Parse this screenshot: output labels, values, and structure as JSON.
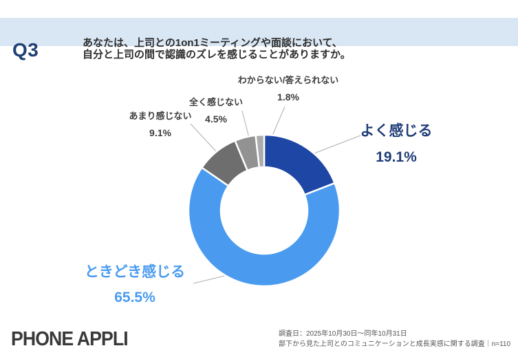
{
  "header": {
    "q_label": "Q3",
    "question_line1": "あなたは、上司との1on1ミーティングや面談において、",
    "question_line2": "自分と上司の間で認識のズレを感じることがありますか。",
    "band_color": "#D9E6F3",
    "q_label_color": "#1E4076"
  },
  "chart_data": {
    "type": "pie",
    "subtype": "donut",
    "title": "",
    "legend_position": "callout-labels",
    "categories": [
      "よく感じる",
      "ときどき感じる",
      "あまり感じない",
      "全く感じない",
      "わからない/答えられない"
    ],
    "values": [
      19.1,
      65.5,
      9.1,
      4.5,
      1.8
    ],
    "display_values": [
      "19.1%",
      "65.5%",
      "9.1%",
      "4.5%",
      "1.8%"
    ],
    "unit": "%",
    "colors": [
      "#1E46A4",
      "#4A9BF0",
      "#6E6E6E",
      "#929292",
      "#ABABAB"
    ],
    "emphasis_label_colors": [
      "#1F3C78",
      "#4A9BF0"
    ],
    "leader_line_color": "#AEAEAE",
    "start_angle_deg": -90,
    "direction": "clockwise",
    "inner_radius_ratio": 0.57
  },
  "footer": {
    "logo_text": "PHONE APPLI",
    "note_line1": "調査日：2025年10月30日～同年10月31日",
    "note_line2": "部下から見た上司とのコミュニケーションと成長実感に関する調査｜n=110"
  }
}
